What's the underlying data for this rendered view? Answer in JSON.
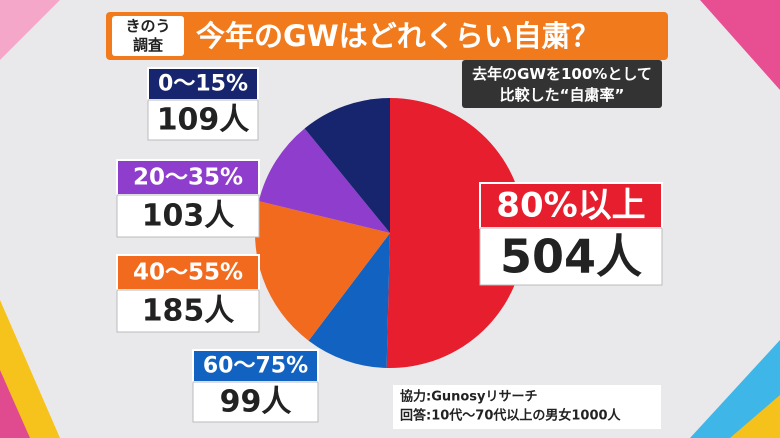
{
  "header": {
    "badge": [
      "きのう",
      "調査"
    ],
    "title": "今年のGWはどれくらい自粛？"
  },
  "note": [
    "去年のGWを100%として",
    "比較した“自粛率”"
  ],
  "chart_data": {
    "type": "pie",
    "categories": [
      "80%以上",
      "60〜75%",
      "40〜55%",
      "20〜35%",
      "0〜15%"
    ],
    "values": [
      504,
      99,
      185,
      103,
      109
    ],
    "value_labels": [
      "504人",
      "99人",
      "185人",
      "103人",
      "109人"
    ],
    "colors": [
      "#e61e2d",
      "#1262c2",
      "#f26a1e",
      "#8f3dcc",
      "#17256f"
    ]
  },
  "source": [
    "協力:Gunosyリサーチ",
    "回答:10代〜70代以上の男女1000人"
  ]
}
